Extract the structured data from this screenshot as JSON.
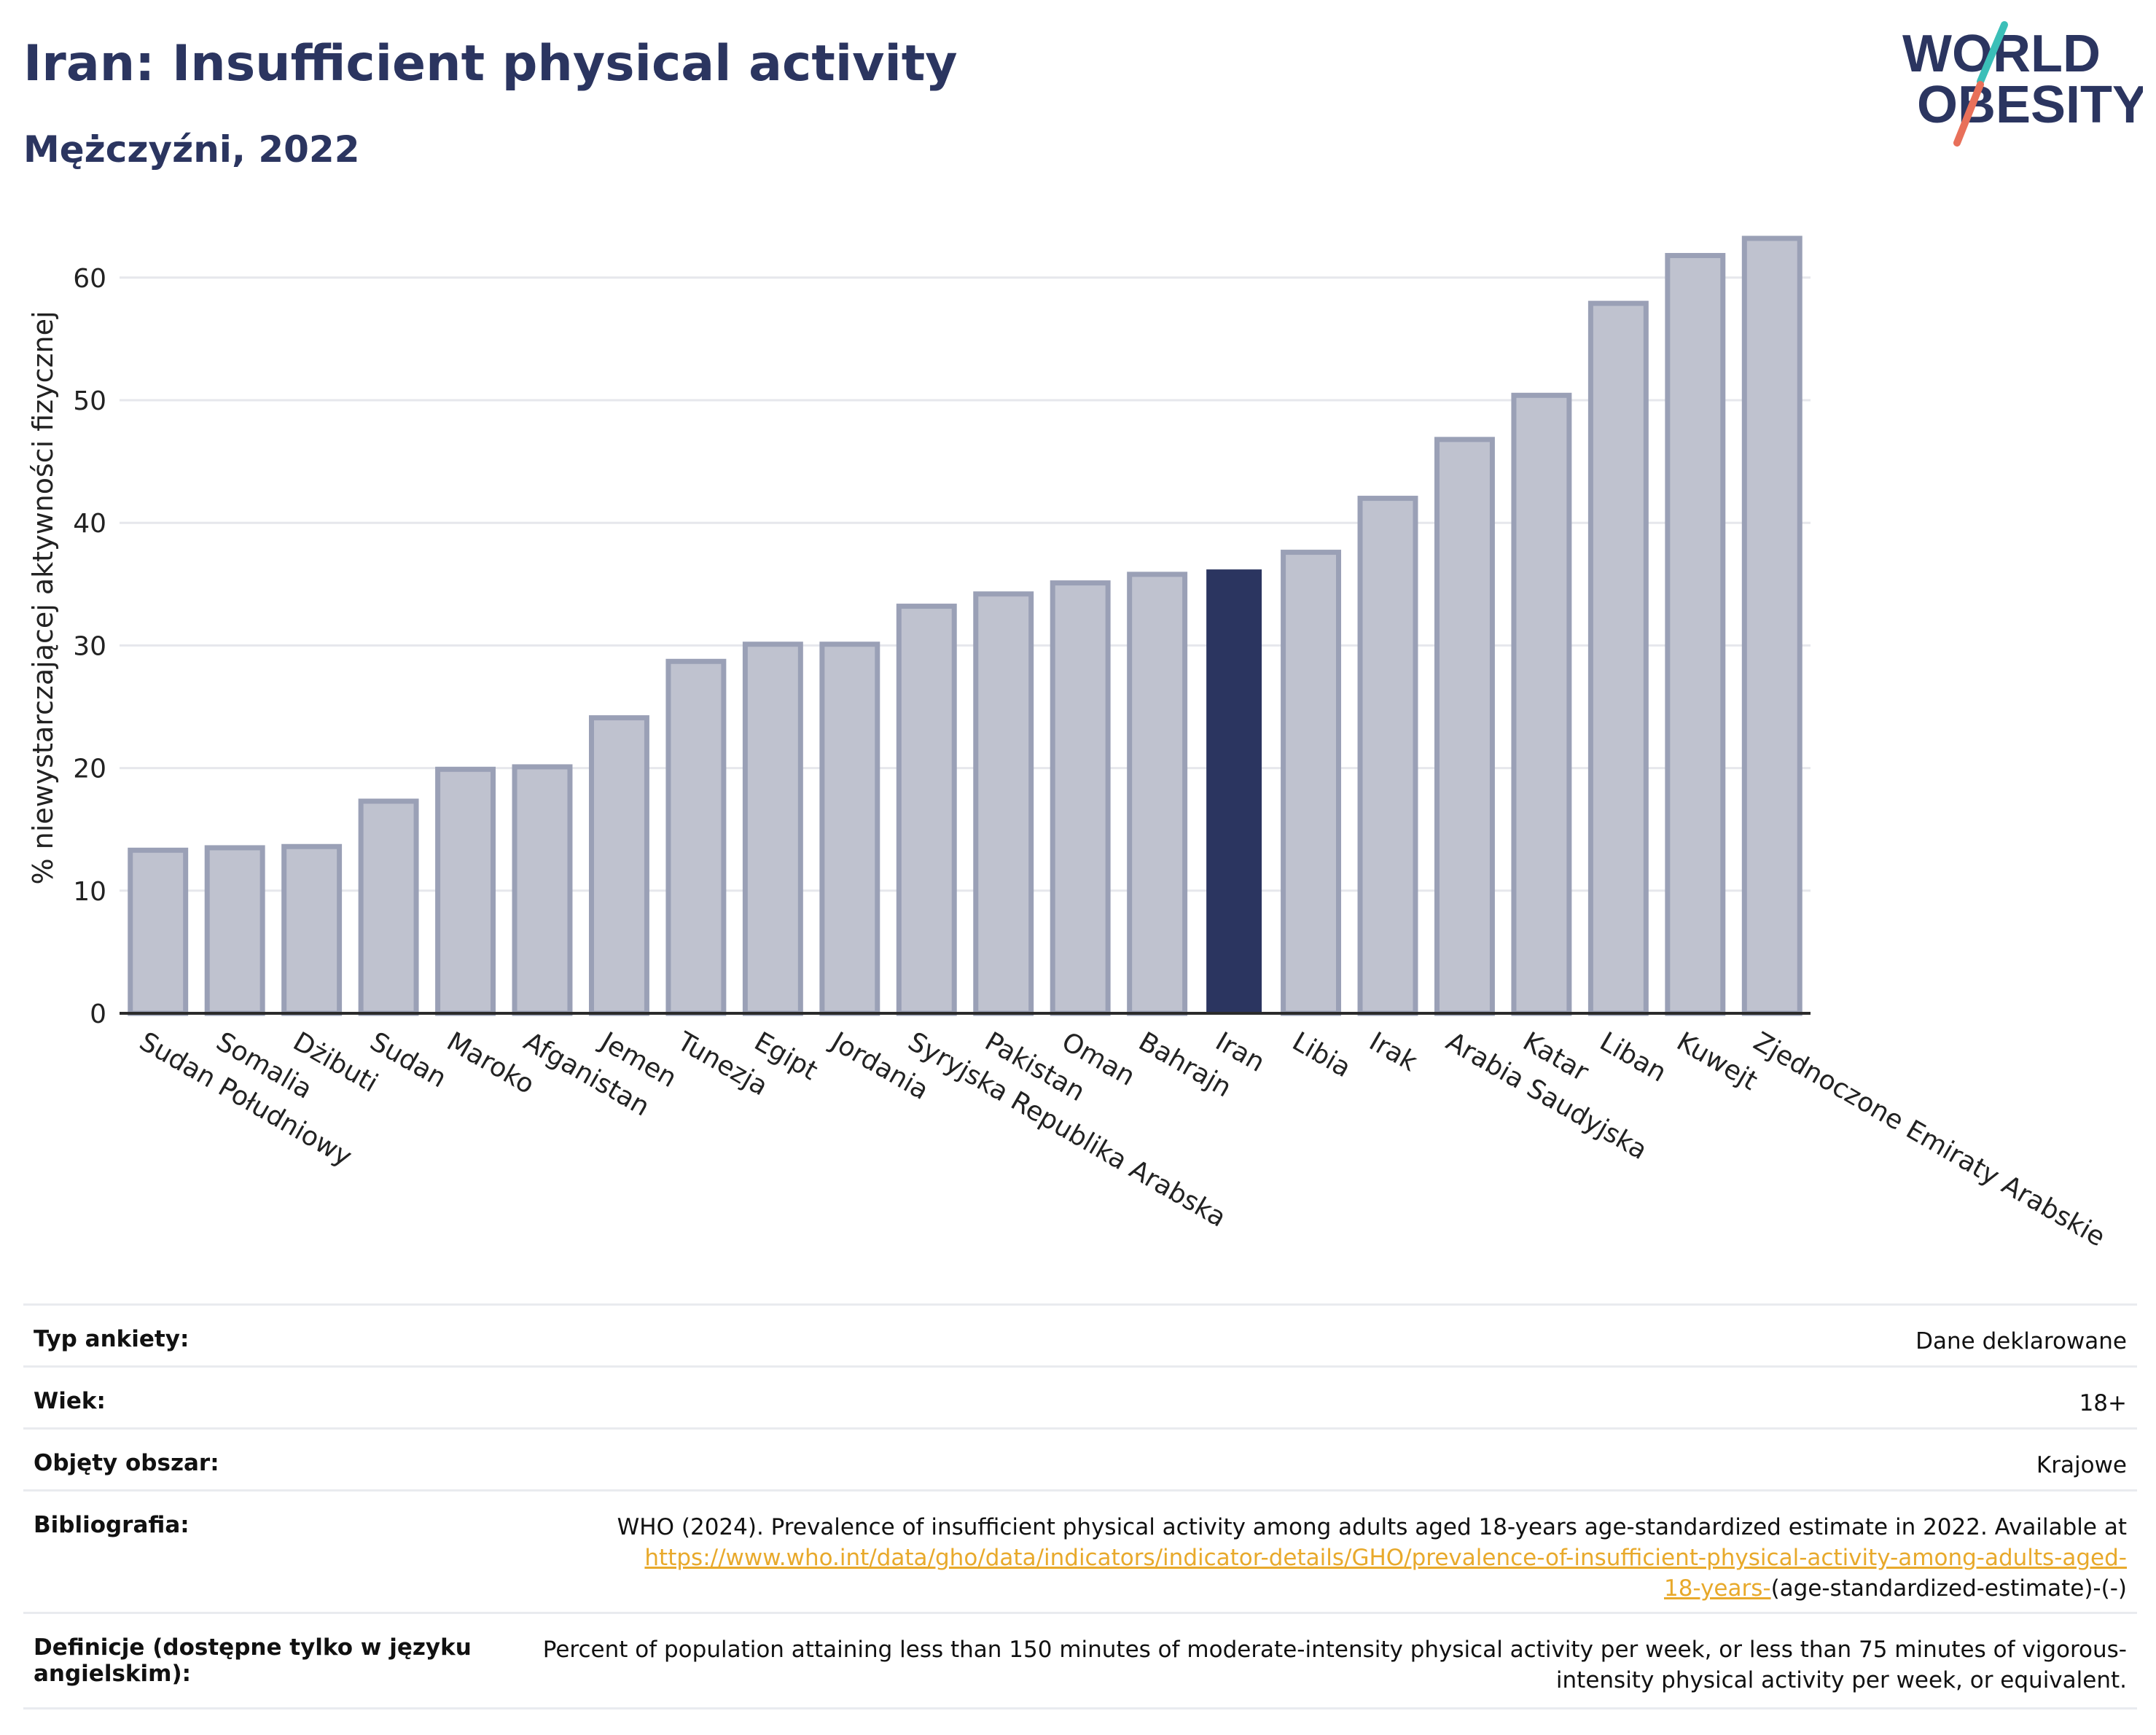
{
  "header": {
    "title": "Iran: Insufficient physical activity",
    "subtitle": "Mężczyźni, 2022"
  },
  "logo": {
    "line1": "WORLD",
    "line2": "OBESITY",
    "colors": {
      "text": "#2b3560",
      "slash_top": "#3bbfb8",
      "slash_bottom": "#e8705a"
    }
  },
  "colors": {
    "bar_default": "#bfc2cf",
    "bar_default_border": "#9aa0b6",
    "bar_highlight": "#2b3560",
    "grid": "#e6e7ec",
    "axis": "#2b2b2b",
    "link": "#e8a92b"
  },
  "chart_data": {
    "type": "bar",
    "title": "Iran: Insufficient physical activity",
    "subtitle": "Mężczyźni, 2022",
    "ylabel": "% niewystarczającej aktywności fizycznej",
    "xlabel": "",
    "ylim": [
      0,
      65
    ],
    "yticks": [
      0,
      10,
      20,
      30,
      40,
      50,
      60
    ],
    "grid": true,
    "highlight": "Iran",
    "categories": [
      "Sudan Południowy",
      "Somalia",
      "Dżibuti",
      "Sudan",
      "Maroko",
      "Afganistan",
      "Jemen",
      "Tunezja",
      "Egipt",
      "Jordania",
      "Syryjska Republika Arabska",
      "Pakistan",
      "Oman",
      "Bahrajn",
      "Iran",
      "Libia",
      "Irak",
      "Arabia Saudyjska",
      "Katar",
      "Liban",
      "Kuwejt",
      "Zjednoczone Emiraty Arabskie"
    ],
    "values": [
      13.3,
      13.5,
      13.6,
      17.3,
      19.9,
      20.1,
      24.1,
      28.7,
      30.1,
      30.1,
      33.2,
      34.2,
      35.1,
      35.8,
      36.2,
      37.6,
      42.0,
      46.8,
      50.4,
      57.9,
      61.8,
      63.2
    ]
  },
  "meta": {
    "rows": [
      {
        "key": "Typ ankiety:",
        "value": "Dane deklarowane"
      },
      {
        "key": "Wiek:",
        "value": "18+"
      },
      {
        "key": "Objęty obszar:",
        "value": "Krajowe"
      },
      {
        "key": "Bibliografia:",
        "value": "WHO (2024). Prevalence of insufficient physical activity among adults aged 18-years age-standardized estimate in 2022. Available at",
        "link_line1": "https://www.who.int/data/gho/data/indicators/indicator-details/GHO/prevalence-of-insufficient-physical-activity-among-adults-aged-",
        "link_line2": "18-years-",
        "tail": "(age-standardized-estimate)-(-)"
      },
      {
        "key": "Definicje (dostępne tylko w języku angielskim):",
        "value": "Percent of population attaining less than 150 minutes of moderate-intensity physical activity per week, or less than 75 minutes of vigorous-intensity physical activity per week, or equivalent."
      }
    ]
  }
}
